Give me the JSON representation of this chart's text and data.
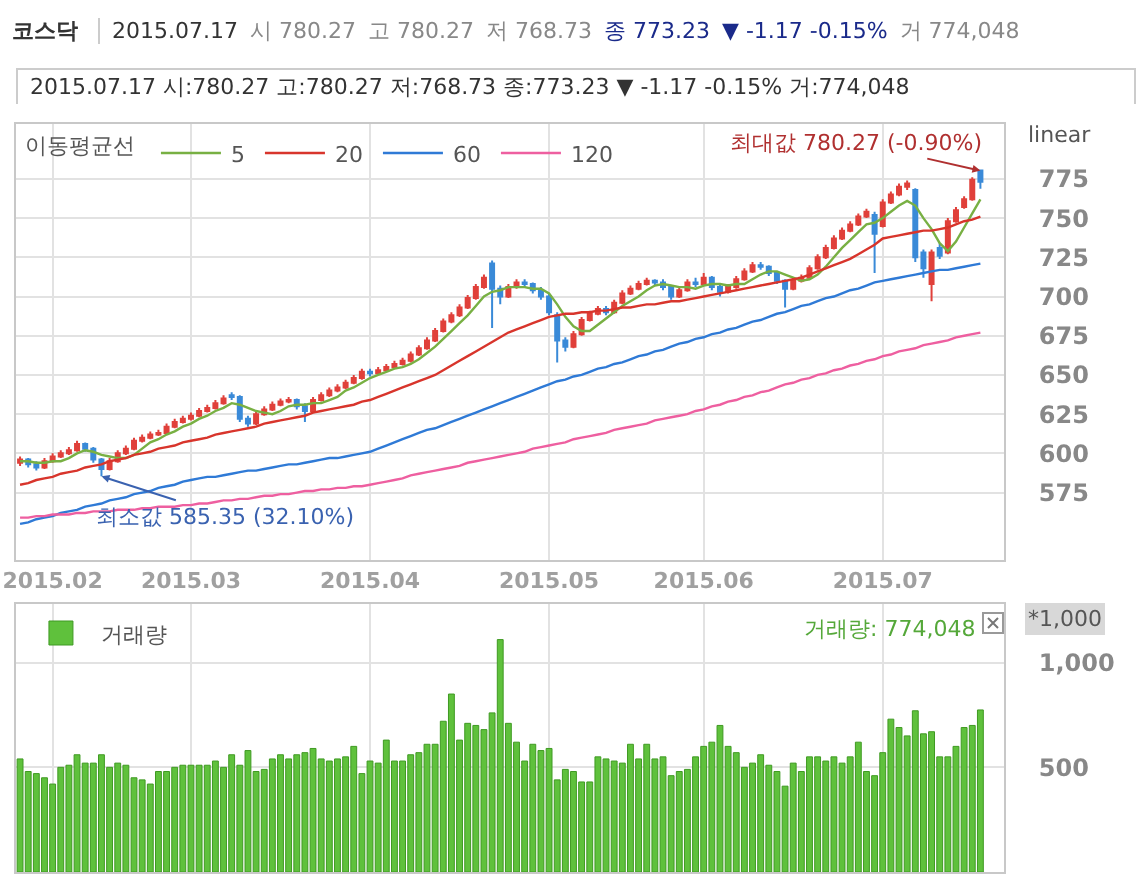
{
  "chart_data": [
    {
      "type": "other",
      "title": "코스닥",
      "annotations": [
        "2015.07.17",
        "시 780.27",
        "고 780.27",
        "저 768.73",
        "종 773.23",
        "▼ -1.17 -0.15%",
        "거 774,048",
        "2015.07.17 시:780.27 고:780.27 저:768.73 종:773.23 ▼  -1.17  -0.15% 거:774,048"
      ]
    },
    {
      "type": "candlestick",
      "legend": "top left",
      "legend_title": "이동평균선",
      "grid": true,
      "ylim": [
        532,
        810
      ],
      "yticks": [
        575,
        600,
        625,
        650,
        675,
        700,
        725,
        750,
        775
      ],
      "colors": [
        "#e0403a",
        "#3a8ad8",
        "#3a8ad8",
        "#e0403a",
        "#e0403a",
        "#e0403a",
        "#e0403a",
        "#e0403a",
        "#3a8ad8",
        "#3a8ad8",
        "#3a8ad8",
        "#e0403a",
        "#e0403a",
        "#e0403a",
        "#e0403a",
        "#e0403a",
        "#e0403a",
        "#e0403a",
        "#e0403a",
        "#e0403a",
        "#e0403a",
        "#e0403a",
        "#e0403a",
        "#e0403a",
        "#e0403a",
        "#e0403a",
        "#3a8ad8",
        "#3a8ad8",
        "#3a8ad8",
        "#e0403a",
        "#e0403a",
        "#e0403a",
        "#e0403a",
        "#e0403a",
        "#3a8ad8",
        "#3a8ad8",
        "#e0403a",
        "#e0403a",
        "#e0403a",
        "#e0403a",
        "#e0403a",
        "#e0403a",
        "#e0403a",
        "#3a8ad8",
        "#e0403a",
        "#e0403a",
        "#e0403a",
        "#e0403a",
        "#e0403a",
        "#e0403a",
        "#e0403a",
        "#e0403a",
        "#e0403a",
        "#e0403a",
        "#e0403a",
        "#e0403a",
        "#e0403a",
        "#e0403a",
        "#3a8ad8",
        "#3a8ad8",
        "#e0403a",
        "#e0403a",
        "#3a8ad8",
        "#3a8ad8",
        "#3a8ad8",
        "#3a8ad8",
        "#3a8ad8",
        "#3a8ad8",
        "#e0403a",
        "#e0403a",
        "#e0403a",
        "#e0403a",
        "#3a8ad8",
        "#e0403a",
        "#e0403a",
        "#e0403a",
        "#e0403a",
        "#e0403a",
        "#3a8ad8",
        "#3a8ad8",
        "#3a8ad8",
        "#e0403a",
        "#e0403a",
        "#3a8ad8",
        "#e0403a",
        "#3a8ad8",
        "#3a8ad8",
        "#e0403a",
        "#e0403a",
        "#e0403a",
        "#e0403a",
        "#3a8ad8",
        "#3a8ad8",
        "#3a8ad8",
        "#3a8ad8",
        "#e0403a",
        "#e0403a",
        "#e0403a",
        "#e0403a",
        "#e0403a",
        "#e0403a",
        "#e0403a",
        "#e0403a",
        "#e0403a",
        "#e0403a",
        "#3a8ad8",
        "#e0403a",
        "#e0403a",
        "#e0403a",
        "#e0403a",
        "#3a8ad8",
        "#3a8ad8",
        "#e0403a",
        "#3a8ad8",
        "#e0403a",
        "#e0403a",
        "#e0403a",
        "#e0403a",
        "#3a8ad8"
      ],
      "categories": [
        null,
        null,
        null,
        null,
        "2015.02",
        null,
        null,
        null,
        null,
        null,
        null,
        null,
        null,
        null,
        null,
        null,
        null,
        null,
        null,
        null,
        null,
        "2015.03",
        null,
        null,
        null,
        null,
        null,
        null,
        null,
        null,
        null,
        null,
        null,
        null,
        null,
        null,
        null,
        null,
        null,
        null,
        null,
        null,
        null,
        "2015.04",
        null,
        null,
        null,
        null,
        null,
        null,
        null,
        null,
        null,
        null,
        null,
        null,
        null,
        null,
        null,
        null,
        null,
        null,
        null,
        null,
        null,
        "2015.05",
        null,
        null,
        null,
        null,
        null,
        null,
        null,
        null,
        null,
        null,
        null,
        null,
        null,
        null,
        null,
        null,
        null,
        null,
        "2015.06",
        null,
        null,
        null,
        null,
        null,
        null,
        null,
        null,
        null,
        null,
        null,
        null,
        null,
        null,
        null,
        null,
        null,
        null,
        null,
        null,
        null,
        "2015.07",
        null,
        null,
        null,
        null,
        null,
        null,
        null,
        null,
        null,
        null,
        null,
        null
      ],
      "ohlc": [
        [
          594,
          598,
          592,
          596
        ],
        [
          596,
          597,
          591,
          593
        ],
        [
          593,
          595,
          589,
          591
        ],
        [
          591,
          597,
          590,
          595
        ],
        [
          595,
          600,
          594,
          598
        ],
        [
          598,
          602,
          597,
          600
        ],
        [
          600,
          604,
          599,
          602
        ],
        [
          602,
          608,
          601,
          606
        ],
        [
          606,
          607,
          601,
          603
        ],
        [
          603,
          604,
          594,
          596
        ],
        [
          596,
          597,
          585.35,
          590
        ],
        [
          590,
          597,
          589,
          595
        ],
        [
          595,
          602,
          594,
          600
        ],
        [
          600,
          605,
          599,
          603
        ],
        [
          603,
          610,
          602,
          608
        ],
        [
          608,
          612,
          607,
          610
        ],
        [
          610,
          614,
          609,
          612
        ],
        [
          612,
          615,
          611,
          613
        ],
        [
          613,
          619,
          612,
          617
        ],
        [
          617,
          622,
          616,
          620
        ],
        [
          620,
          624,
          619,
          622
        ],
        [
          622,
          626,
          621,
          624
        ],
        [
          624,
          629,
          623,
          627
        ],
        [
          627,
          631,
          626,
          629
        ],
        [
          629,
          634,
          628,
          632
        ],
        [
          632,
          637,
          631,
          635
        ],
        [
          637,
          639,
          634,
          636
        ],
        [
          636,
          637,
          620,
          622
        ],
        [
          622,
          624,
          617,
          619
        ],
        [
          619,
          627,
          618,
          625
        ],
        [
          625,
          630,
          624,
          628
        ],
        [
          628,
          633,
          627,
          631
        ],
        [
          631,
          635,
          630,
          633
        ],
        [
          633,
          636,
          632,
          634
        ],
        [
          634,
          635,
          628,
          630
        ],
        [
          630,
          632,
          620,
          627
        ],
        [
          627,
          636,
          626,
          634
        ],
        [
          634,
          639,
          633,
          637
        ],
        [
          637,
          642,
          636,
          640
        ],
        [
          640,
          644,
          639,
          642
        ],
        [
          642,
          647,
          641,
          645
        ],
        [
          645,
          650,
          644,
          648
        ],
        [
          648,
          654,
          647,
          652
        ],
        [
          652,
          654,
          649,
          651
        ],
        [
          651,
          655,
          650,
          653
        ],
        [
          653,
          657,
          652,
          655
        ],
        [
          655,
          659,
          654,
          657
        ],
        [
          657,
          661,
          656,
          659
        ],
        [
          659,
          665,
          658,
          663
        ],
        [
          663,
          669,
          662,
          667
        ],
        [
          667,
          674,
          666,
          672
        ],
        [
          672,
          680,
          671,
          678
        ],
        [
          678,
          686,
          677,
          684
        ],
        [
          684,
          690,
          683,
          688
        ],
        [
          688,
          695,
          687,
          693
        ],
        [
          693,
          701,
          692,
          699
        ],
        [
          699,
          708,
          698,
          706
        ],
        [
          706,
          714,
          705,
          712
        ],
        [
          721,
          723,
          680,
          705
        ],
        [
          705,
          707,
          695,
          700
        ],
        [
          700,
          708,
          699,
          706
        ],
        [
          706,
          711,
          705,
          709
        ],
        [
          709,
          711,
          706,
          708
        ],
        [
          708,
          709,
          702,
          704
        ],
        [
          704,
          706,
          698,
          700
        ],
        [
          700,
          702,
          688,
          690
        ],
        [
          688,
          690,
          658,
          672
        ],
        [
          672,
          674,
          665,
          668
        ],
        [
          668,
          678,
          667,
          676
        ],
        [
          676,
          687,
          675,
          685
        ],
        [
          685,
          691,
          684,
          689
        ],
        [
          689,
          694,
          688,
          692
        ],
        [
          692,
          694,
          688,
          690
        ],
        [
          690,
          698,
          689,
          696
        ],
        [
          696,
          704,
          695,
          702
        ],
        [
          702,
          707,
          701,
          705
        ],
        [
          705,
          710,
          704,
          708
        ],
        [
          708,
          712,
          707,
          710
        ],
        [
          710,
          711,
          707,
          709
        ],
        [
          709,
          711,
          704,
          706
        ],
        [
          706,
          707,
          698,
          700
        ],
        [
          700,
          706,
          699,
          704
        ],
        [
          704,
          711,
          703,
          709
        ],
        [
          709,
          712,
          706,
          708
        ],
        [
          708,
          715,
          707,
          712
        ],
        [
          712,
          713,
          704,
          706
        ],
        [
          706,
          708,
          700,
          703
        ],
        [
          703,
          708,
          702,
          706
        ],
        [
          706,
          713,
          705,
          711
        ],
        [
          711,
          718,
          710,
          716
        ],
        [
          716,
          722,
          715,
          720
        ],
        [
          720,
          722,
          717,
          719
        ],
        [
          719,
          720,
          713,
          715
        ],
        [
          715,
          716,
          708,
          710
        ],
        [
          710,
          711,
          693,
          705
        ],
        [
          705,
          712,
          704,
          710
        ],
        [
          710,
          714,
          709,
          712
        ],
        [
          712,
          720,
          711,
          718
        ],
        [
          718,
          727,
          717,
          725
        ],
        [
          725,
          733,
          724,
          731
        ],
        [
          731,
          739,
          730,
          737
        ],
        [
          737,
          744,
          736,
          742
        ],
        [
          742,
          748,
          741,
          746
        ],
        [
          746,
          753,
          745,
          751
        ],
        [
          751,
          756,
          750,
          754
        ],
        [
          752,
          754,
          715,
          740
        ],
        [
          745,
          762,
          744,
          760
        ],
        [
          760,
          767,
          759,
          765
        ],
        [
          765,
          772,
          764,
          770
        ],
        [
          770,
          774,
          768,
          772
        ],
        [
          768,
          769,
          722,
          725
        ],
        [
          728,
          730,
          712,
          718
        ],
        [
          708,
          730,
          697,
          728
        ],
        [
          731,
          734,
          724,
          726
        ],
        [
          728,
          750,
          727,
          748
        ],
        [
          748,
          757,
          747,
          755
        ],
        [
          757,
          764,
          756,
          762
        ],
        [
          762,
          776,
          761,
          774.4
        ],
        [
          780.27,
          780.27,
          768.73,
          773.23
        ]
      ],
      "series": [
        {
          "type": "line",
          "name": "5",
          "color": "#78b043",
          "values": [
            595,
            595,
            594,
            594,
            595,
            595,
            597,
            600,
            602,
            601,
            599,
            598,
            597,
            597,
            599,
            603,
            607,
            609,
            612,
            614,
            617,
            619,
            622,
            624,
            627,
            629,
            632,
            631,
            629,
            627,
            626,
            625,
            627,
            630,
            631,
            631,
            632,
            632,
            634,
            636,
            640,
            642,
            645,
            648,
            650,
            652,
            654,
            655,
            657,
            660,
            664,
            668,
            673,
            678,
            683,
            688,
            694,
            700,
            703,
            704,
            706,
            706,
            706,
            705,
            705,
            702,
            695,
            687,
            681,
            678,
            678,
            682,
            686,
            690,
            694,
            697,
            700,
            704,
            707,
            708,
            707,
            706,
            706,
            705,
            707,
            708,
            708,
            707,
            708,
            708,
            711,
            714,
            716,
            716,
            714,
            712,
            710,
            711,
            714,
            719,
            725,
            731,
            736,
            741,
            746,
            747,
            750,
            754,
            758,
            761,
            758,
            750,
            743,
            734,
            729,
            735,
            744,
            753,
            762
          ]
        },
        {
          "type": "line",
          "name": "20",
          "color": "#d8352c",
          "values": [
            580,
            581,
            583,
            584,
            585,
            587,
            588,
            589,
            591,
            592,
            593,
            595,
            596,
            597,
            599,
            600,
            601,
            603,
            604,
            605,
            607,
            608,
            609,
            610,
            612,
            613,
            614,
            615,
            616,
            617,
            619,
            620,
            621,
            622,
            623,
            624,
            626,
            627,
            628,
            629,
            630,
            631,
            633,
            634,
            636,
            638,
            640,
            642,
            644,
            646,
            648,
            650,
            653,
            656,
            659,
            662,
            665,
            668,
            671,
            674,
            677,
            679,
            681,
            683,
            685,
            687,
            688,
            689,
            689,
            690,
            690,
            691,
            691,
            692,
            693,
            693,
            694,
            695,
            695,
            696,
            697,
            697,
            698,
            699,
            700,
            701,
            702,
            703,
            704,
            705,
            706,
            707,
            708,
            709,
            710,
            711,
            712,
            714,
            716,
            718,
            720,
            722,
            724,
            727,
            730,
            733,
            737,
            738,
            739,
            740,
            741,
            742,
            742,
            743,
            744,
            746,
            748,
            749,
            751
          ]
        },
        {
          "type": "line",
          "name": "60",
          "color": "#2f7ad6",
          "values": [
            555,
            556,
            558,
            559,
            560,
            562,
            563,
            564,
            566,
            567,
            568,
            570,
            571,
            572,
            574,
            575,
            576,
            578,
            579,
            580,
            582,
            583,
            584,
            585,
            585,
            586,
            587,
            588,
            589,
            589,
            590,
            591,
            592,
            593,
            593,
            594,
            595,
            596,
            597,
            597,
            598,
            599,
            600,
            601,
            603,
            605,
            607,
            609,
            611,
            613,
            615,
            616,
            618,
            620,
            622,
            624,
            626,
            628,
            630,
            632,
            634,
            636,
            638,
            640,
            642,
            644,
            646,
            647,
            649,
            650,
            652,
            654,
            655,
            657,
            658,
            660,
            662,
            663,
            665,
            666,
            668,
            670,
            671,
            673,
            674,
            676,
            677,
            679,
            680,
            682,
            684,
            685,
            687,
            689,
            690,
            692,
            694,
            695,
            697,
            699,
            700,
            702,
            704,
            705,
            707,
            709,
            710,
            711,
            712,
            713,
            714,
            715,
            716,
            717,
            717,
            718,
            719,
            720,
            721
          ]
        },
        {
          "type": "line",
          "name": "120",
          "color": "#ee5fa0",
          "values": [
            559,
            559,
            560,
            560,
            561,
            561,
            561,
            562,
            562,
            563,
            563,
            563,
            564,
            564,
            564,
            565,
            565,
            566,
            566,
            566,
            567,
            567,
            568,
            568,
            569,
            570,
            570,
            571,
            571,
            572,
            573,
            573,
            574,
            574,
            575,
            576,
            576,
            577,
            577,
            578,
            578,
            579,
            579,
            580,
            581,
            582,
            583,
            584,
            586,
            587,
            588,
            589,
            590,
            591,
            592,
            594,
            595,
            596,
            597,
            598,
            599,
            600,
            601,
            603,
            604,
            605,
            606,
            607,
            609,
            610,
            611,
            612,
            613,
            615,
            616,
            617,
            618,
            619,
            621,
            622,
            623,
            624,
            625,
            627,
            628,
            630,
            631,
            633,
            634,
            636,
            637,
            639,
            640,
            642,
            644,
            645,
            647,
            648,
            650,
            651,
            653,
            654,
            656,
            657,
            659,
            660,
            662,
            663,
            665,
            666,
            667,
            669,
            670,
            671,
            672,
            674,
            675,
            676,
            677
          ]
        }
      ],
      "annotations": [
        "최소값 585.35 (32.10%)",
        "최대값 780.27 (-0.90%)",
        "linear"
      ]
    },
    {
      "type": "bar",
      "legend": "top left",
      "grid": true,
      "tick_labels": "y",
      "ylim": [
        0,
        1280
      ],
      "yticks": [
        500,
        {
          "value": 1000,
          "label": "1,000"
        }
      ],
      "categories": [
        null,
        null,
        null,
        null,
        "2015.02",
        null,
        null,
        null,
        null,
        null,
        null,
        null,
        null,
        null,
        null,
        null,
        null,
        null,
        null,
        null,
        null,
        "2015.03",
        null,
        null,
        null,
        null,
        null,
        null,
        null,
        null,
        null,
        null,
        null,
        null,
        null,
        null,
        null,
        null,
        null,
        null,
        null,
        null,
        null,
        "2015.04",
        null,
        null,
        null,
        null,
        null,
        null,
        null,
        null,
        null,
        null,
        null,
        null,
        null,
        null,
        null,
        null,
        null,
        null,
        null,
        null,
        null,
        "2015.05",
        null,
        null,
        null,
        null,
        null,
        null,
        null,
        null,
        null,
        null,
        null,
        null,
        null,
        null,
        null,
        null,
        null,
        null,
        "2015.06",
        null,
        null,
        null,
        null,
        null,
        null,
        null,
        null,
        null,
        null,
        null,
        null,
        null,
        null,
        null,
        null,
        null,
        null,
        null,
        null,
        null,
        "2015.07",
        null,
        null,
        null,
        null,
        null,
        null,
        null,
        null,
        null,
        null,
        null,
        null
      ],
      "series": [
        {
          "name": "거래량",
          "color": "#5fc13c",
          "values": [
            540,
            480,
            470,
            450,
            420,
            500,
            510,
            560,
            520,
            520,
            560,
            500,
            520,
            510,
            450,
            440,
            420,
            480,
            480,
            500,
            510,
            510,
            510,
            510,
            530,
            500,
            560,
            510,
            580,
            480,
            490,
            540,
            560,
            540,
            560,
            570,
            590,
            540,
            530,
            540,
            550,
            600,
            470,
            530,
            520,
            630,
            530,
            530,
            560,
            570,
            610,
            610,
            720,
            850,
            630,
            710,
            700,
            680,
            760,
            1110,
            710,
            620,
            530,
            610,
            580,
            590,
            440,
            490,
            480,
            430,
            430,
            550,
            540,
            530,
            520,
            610,
            540,
            610,
            540,
            550,
            460,
            480,
            490,
            550,
            600,
            620,
            700,
            600,
            570,
            500,
            520,
            560,
            510,
            480,
            410,
            520,
            480,
            550,
            550,
            530,
            550,
            520,
            550,
            620,
            480,
            460,
            570,
            730,
            690,
            650,
            770,
            660,
            670,
            550,
            550,
            600,
            690,
            700,
            774
          ]
        }
      ],
      "annotations": [
        "거래량: 774,048",
        "*1,000"
      ]
    }
  ]
}
